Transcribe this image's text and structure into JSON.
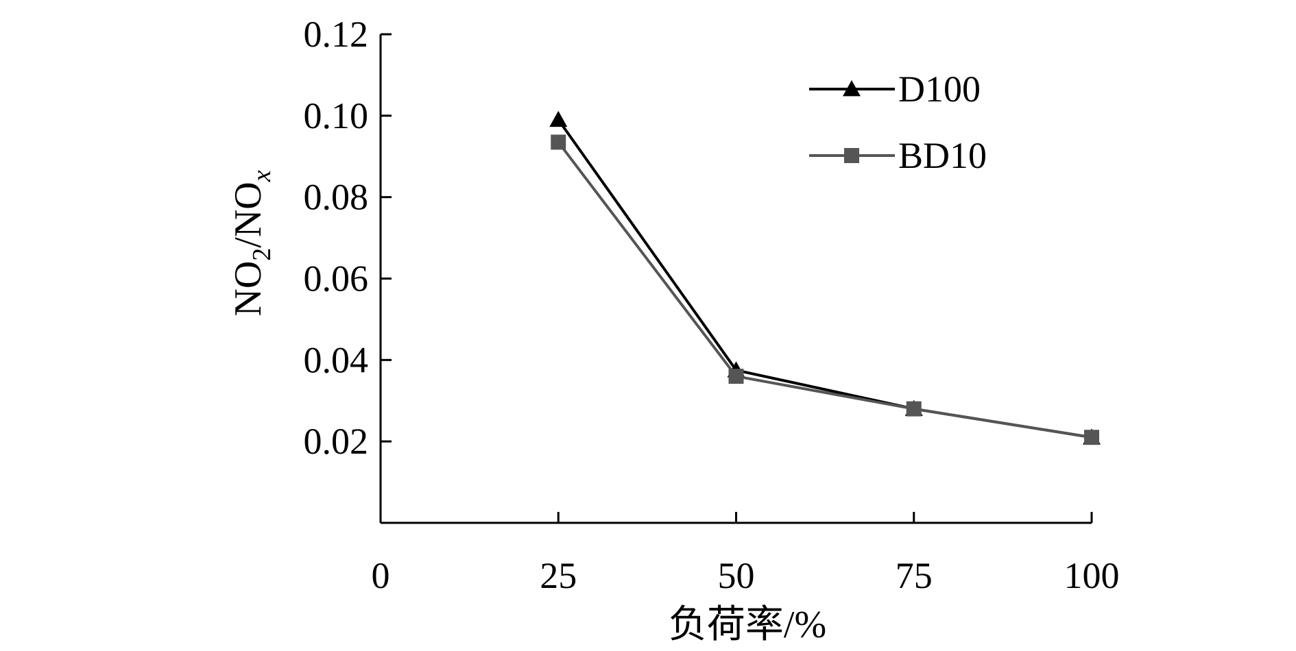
{
  "chart_data": {
    "type": "line",
    "title": "",
    "xlabel": "负荷率/%",
    "ylabel": {
      "base": "NO",
      "sub1": "2",
      "mid": "/NO",
      "sub2": "x"
    },
    "x": [
      25,
      50,
      75,
      100
    ],
    "xlim": [
      0,
      100
    ],
    "ylim": [
      0,
      0.12
    ],
    "x_ticks": [
      "0",
      "25",
      "50",
      "75",
      "100"
    ],
    "y_ticks": [
      "0.02",
      "0.04",
      "0.06",
      "0.08",
      "0.10",
      "0.12"
    ],
    "x_tick_values": [
      0,
      25,
      50,
      75,
      100
    ],
    "y_tick_values": [
      0.02,
      0.04,
      0.06,
      0.08,
      0.1,
      0.12
    ],
    "grid": false,
    "legend_position": "top-right",
    "series": [
      {
        "name": "D100",
        "values": [
          0.099,
          0.0375,
          0.028,
          0.021
        ],
        "color": "#000000",
        "marker": "triangle"
      },
      {
        "name": "BD10",
        "values": [
          0.0935,
          0.036,
          0.028,
          0.021
        ],
        "color": "#555555",
        "marker": "square"
      }
    ]
  }
}
